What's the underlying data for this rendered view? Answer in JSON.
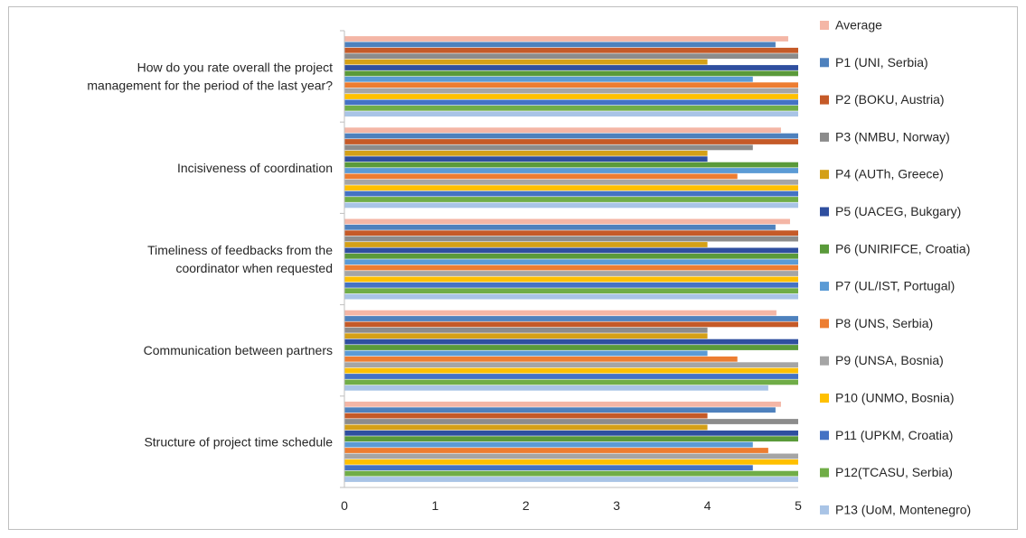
{
  "chart_data": {
    "type": "bar",
    "orientation": "horizontal",
    "categories": [
      "How do you rate overall the project management for the period of the last year?",
      "Incisiveness of coordination",
      "Timeliness of feedbacks from the coordinator when requested",
      "Communication between partners",
      "Structure of project time schedule"
    ],
    "category_lines": [
      [
        "How do you rate overall the project",
        "management for the period of the last year?"
      ],
      [
        "Incisiveness of coordination"
      ],
      [
        "Timeliness of feedbacks from the",
        "coordinator when requested"
      ],
      [
        "Communication between partners"
      ],
      [
        "Structure of project time schedule"
      ]
    ],
    "xlim": [
      0,
      5
    ],
    "xticks": [
      "0",
      "1",
      "2",
      "3",
      "4",
      "5"
    ],
    "grid": false,
    "legend_position": "right",
    "series": [
      {
        "name": "Average",
        "color": "#f4b6a6",
        "values": [
          4.89,
          4.81,
          4.91,
          4.76,
          4.81
        ]
      },
      {
        "name": "P1 (UNI, Serbia)",
        "color": "#4e81bd",
        "values": [
          4.75,
          5.0,
          4.75,
          5.0,
          4.75
        ]
      },
      {
        "name": "P2 (BOKU, Austria)",
        "color": "#c55a28",
        "values": [
          5.0,
          5.0,
          5.0,
          5.0,
          4.0
        ]
      },
      {
        "name": "P3 (NMBU, Norway)",
        "color": "#8c8c8c",
        "values": [
          5.0,
          4.5,
          5.0,
          4.0,
          5.0
        ]
      },
      {
        "name": "P4 (AUTh, Greece)",
        "color": "#d4a017",
        "values": [
          4.0,
          4.0,
          4.0,
          4.0,
          4.0
        ]
      },
      {
        "name": "P5 (UACEG, Bukgary)",
        "color": "#2f4f9f",
        "values": [
          5.0,
          4.0,
          5.0,
          5.0,
          5.0
        ]
      },
      {
        "name": "P6 (UNIRIFCE, Croatia)",
        "color": "#5a9a3a",
        "values": [
          5.0,
          5.0,
          5.0,
          5.0,
          5.0
        ]
      },
      {
        "name": "P7 (UL/IST, Portugal)",
        "color": "#5b9bd5",
        "values": [
          4.5,
          5.0,
          5.0,
          4.0,
          4.5
        ]
      },
      {
        "name": "P8 (UNS, Serbia)",
        "color": "#ed7d31",
        "values": [
          5.0,
          4.33,
          5.0,
          4.33,
          4.67
        ]
      },
      {
        "name": "P9 (UNSA, Bosnia)",
        "color": "#a5a5a5",
        "values": [
          5.0,
          5.0,
          5.0,
          5.0,
          5.0
        ]
      },
      {
        "name": "P10 (UNMO, Bosnia)",
        "color": "#ffc000",
        "values": [
          5.0,
          5.0,
          5.0,
          5.0,
          5.0
        ]
      },
      {
        "name": "P11 (UPKM, Croatia)",
        "color": "#4472c4",
        "values": [
          5.0,
          5.0,
          5.0,
          5.0,
          4.5
        ]
      },
      {
        "name": "P12(TCASU, Serbia)",
        "color": "#70ad47",
        "values": [
          5.0,
          5.0,
          5.0,
          5.0,
          5.0
        ]
      },
      {
        "name": "P13 (UoM, Montenegro)",
        "color": "#a9c4e6",
        "values": [
          5.0,
          5.0,
          5.0,
          4.67,
          5.0
        ]
      }
    ]
  }
}
